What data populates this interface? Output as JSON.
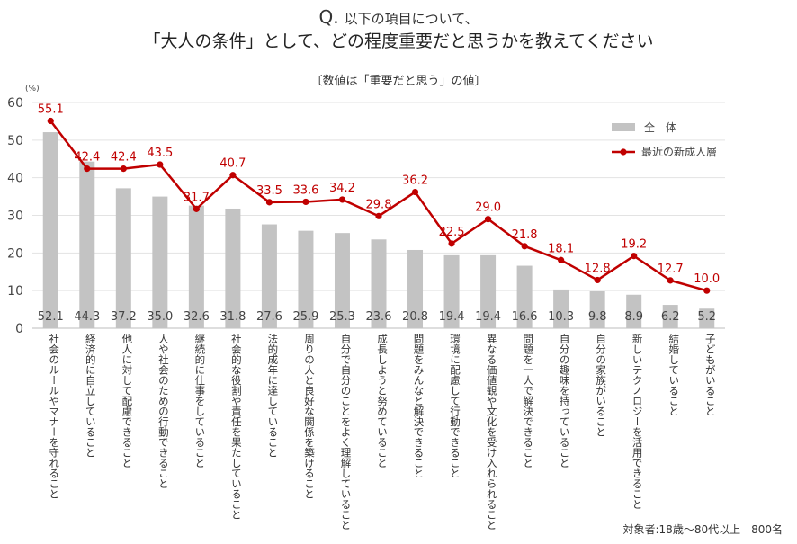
{
  "header": {
    "q_mark": "Q.",
    "q_text": "以下の項目について、",
    "title": "「大人の条件」として、どの程度重要だと思うかを教えてください",
    "subtitle": "〔数値は「重要だと思う」の値〕"
  },
  "footnote": "対象者:18歳〜80代以上　800名",
  "chart_data": {
    "type": "bar+line",
    "ylabel_unit": "(%)",
    "ylim": [
      0,
      60
    ],
    "yticks": [
      0,
      10,
      20,
      30,
      40,
      50,
      60
    ],
    "grid": true,
    "legend_position": "top-right",
    "categories": [
      "社会のルールやマナーを守れること",
      "経済的に自立していること",
      "他人に対して配慮できること",
      "人や社会のための行動できること",
      "継続的に仕事をしていること",
      "社会的な役割や責任を果たしていること",
      "法的成年に達していること",
      "周りの人と良好な関係を築けること",
      "自分で自分のことをよく理解していること",
      "成長しようと努めていること",
      "問題をみんなと解決できること",
      "環境に配慮して行動できること",
      "異なる価値観や文化を受け入れられること",
      "問題を一人で解決できること",
      "自分の趣味を持っていること",
      "自分の家族がいること",
      "新しいテクノロジーを活用できること",
      "結婚していること",
      "子どもがいること"
    ],
    "series": [
      {
        "name": "全　体",
        "type": "bar",
        "color": "#c3c3c3",
        "values": [
          52.1,
          44.3,
          37.2,
          35.0,
          32.6,
          31.8,
          27.6,
          25.9,
          25.3,
          23.6,
          20.8,
          19.4,
          19.4,
          16.6,
          10.3,
          9.8,
          8.9,
          6.2,
          5.2
        ]
      },
      {
        "name": "最近の新成人層",
        "type": "line",
        "color": "#c00000",
        "values": [
          55.1,
          42.4,
          42.4,
          43.5,
          31.7,
          40.7,
          33.5,
          33.6,
          34.2,
          29.8,
          36.2,
          22.5,
          29.0,
          21.8,
          18.1,
          12.8,
          19.2,
          12.7,
          10.0
        ]
      }
    ]
  }
}
